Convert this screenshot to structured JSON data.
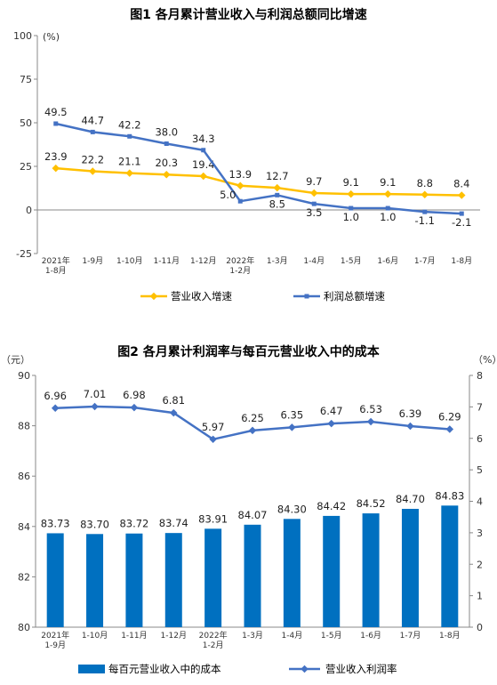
{
  "chart_data": [
    {
      "type": "line",
      "title": "图1  各月累计营业收入与利润总额同比增速",
      "yunit": "(%)",
      "ylim": [
        -25,
        100
      ],
      "yticks": [
        -25,
        0,
        25,
        50,
        75,
        100
      ],
      "categories": [
        [
          "2021年",
          "1-8月"
        ],
        [
          "1-9月"
        ],
        [
          "1-10月"
        ],
        [
          "1-11月"
        ],
        [
          "1-12月"
        ],
        [
          "2022年",
          "1-2月"
        ],
        [
          "1-3月"
        ],
        [
          "1-4月"
        ],
        [
          "1-5月"
        ],
        [
          "1-6月"
        ],
        [
          "1-7月"
        ],
        [
          "1-8月"
        ]
      ],
      "series": [
        {
          "name": "营业收入增速",
          "color": "#FFC000",
          "values": [
            23.9,
            22.2,
            21.1,
            20.3,
            19.4,
            13.9,
            12.7,
            9.7,
            9.1,
            9.1,
            8.8,
            8.4
          ]
        },
        {
          "name": "利润总额增速",
          "color": "#4472C4",
          "values": [
            49.5,
            44.7,
            42.2,
            38.0,
            34.3,
            5.0,
            8.5,
            3.5,
            1.0,
            1.0,
            -1.1,
            -2.1
          ]
        }
      ],
      "legend": "bottom"
    },
    {
      "type": "bar+line",
      "title": "图2  各月累计利润率与每百元营业收入中的成本",
      "y1unit": "（元）",
      "y2unit": "（%）",
      "y1lim": [
        80,
        90
      ],
      "y1ticks": [
        80,
        82,
        84,
        86,
        88,
        90
      ],
      "y2lim": [
        0,
        8
      ],
      "y2ticks": [
        0,
        1,
        2,
        3,
        4,
        5,
        6,
        7,
        8
      ],
      "categories": [
        [
          "2021年",
          "1-9月"
        ],
        [
          "1-10月"
        ],
        [
          "1-11月"
        ],
        [
          "1-12月"
        ],
        [
          "2022年",
          "1-2月"
        ],
        [
          "1-3月"
        ],
        [
          "1-4月"
        ],
        [
          "1-5月"
        ],
        [
          "1-6月"
        ],
        [
          "1-7月"
        ],
        [
          "1-8月"
        ]
      ],
      "bars": {
        "name": "每百元营业收入中的成本",
        "color": "#0070C0",
        "values": [
          83.73,
          83.7,
          83.72,
          83.74,
          83.91,
          84.07,
          84.3,
          84.42,
          84.52,
          84.7,
          84.83
        ]
      },
      "line": {
        "name": "营业收入利润率",
        "color": "#4472C4",
        "values": [
          6.96,
          7.01,
          6.98,
          6.81,
          5.97,
          6.25,
          6.35,
          6.47,
          6.53,
          6.39,
          6.29
        ]
      },
      "legend": "bottom"
    }
  ]
}
